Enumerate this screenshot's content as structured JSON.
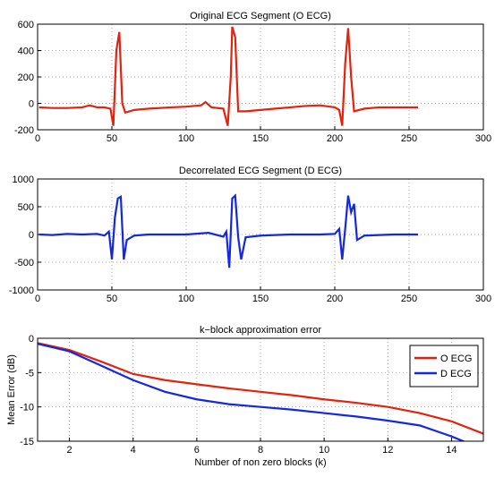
{
  "chart_data": [
    {
      "type": "line",
      "title": "Original ECG Segment (O ECG)",
      "color": "#e0240f",
      "x": [
        1,
        10,
        20,
        30,
        35,
        40,
        45,
        49,
        51,
        53,
        55,
        57,
        59,
        65,
        75,
        90,
        100,
        110,
        113,
        117,
        125,
        128,
        130,
        131,
        133,
        135,
        140,
        150,
        160,
        170,
        180,
        190,
        200,
        203,
        205,
        207,
        209,
        211,
        213,
        220,
        230,
        240,
        256
      ],
      "values": [
        -30,
        -35,
        -35,
        -30,
        -15,
        -30,
        -30,
        -40,
        -170,
        400,
        540,
        0,
        -70,
        -50,
        -40,
        -30,
        -25,
        -15,
        10,
        -30,
        -40,
        -170,
        200,
        580,
        500,
        -60,
        -60,
        -50,
        -40,
        -30,
        -20,
        -15,
        -30,
        -50,
        -170,
        300,
        570,
        200,
        -60,
        -40,
        -30,
        -30,
        -30
      ],
      "xlim": [
        0,
        300
      ],
      "xticks": [
        0,
        50,
        100,
        150,
        200,
        250,
        300
      ],
      "ylim": [
        -200,
        600
      ],
      "yticks": [
        -200,
        0,
        200,
        400,
        600
      ],
      "grid": true
    },
    {
      "type": "line",
      "title": "Decorrelated ECG Segment (D ECG)",
      "color": "#1428e0",
      "x": [
        1,
        10,
        20,
        30,
        40,
        45,
        48,
        50,
        52,
        54,
        56,
        58,
        60,
        65,
        75,
        100,
        115,
        125,
        127,
        129,
        131,
        133,
        135,
        137,
        140,
        150,
        170,
        190,
        200,
        203,
        205,
        207,
        209,
        211,
        213,
        215,
        220,
        240,
        256
      ],
      "values": [
        0,
        -10,
        10,
        0,
        10,
        -20,
        50,
        -450,
        300,
        650,
        680,
        -450,
        -100,
        -20,
        0,
        0,
        30,
        -40,
        50,
        -600,
        650,
        700,
        -50,
        -450,
        -50,
        -20,
        0,
        0,
        10,
        100,
        -450,
        100,
        700,
        400,
        550,
        -100,
        -20,
        0,
        0
      ],
      "xlim": [
        0,
        300
      ],
      "xticks": [
        0,
        50,
        100,
        150,
        200,
        250,
        300
      ],
      "ylim": [
        -1000,
        1000
      ],
      "yticks": [
        -1000,
        -500,
        0,
        500,
        1000
      ],
      "grid": true
    },
    {
      "type": "line",
      "title": "k−block approximation error",
      "xlabel": "Number of non zero blocks (k)",
      "ylabel": "Mean Error (dB)",
      "x": [
        1,
        2,
        3,
        4,
        5,
        6,
        7,
        8,
        9,
        10,
        11,
        12,
        13,
        14,
        15
      ],
      "series": [
        {
          "name": "O ECG",
          "color": "#e0240f",
          "values": [
            -0.7,
            -1.7,
            -3.4,
            -5.2,
            -6.1,
            -6.7,
            -7.3,
            -7.8,
            -8.3,
            -8.9,
            -9.4,
            -10,
            -10.9,
            -12.1,
            -13.9
          ]
        },
        {
          "name": "D ECG",
          "color": "#1428e0",
          "values": [
            -0.8,
            -1.9,
            -4,
            -6.1,
            -7.8,
            -8.9,
            -9.6,
            -10,
            -10.4,
            -10.9,
            -11.4,
            -12,
            -12.7,
            -14.3,
            -16.2
          ]
        }
      ],
      "xlim": [
        1,
        15
      ],
      "xticks": [
        2,
        4,
        6,
        8,
        10,
        12,
        14
      ],
      "ylim": [
        -15,
        0
      ],
      "yticks": [
        -15,
        -10,
        -5,
        0
      ],
      "grid": true,
      "legend": "upper right"
    }
  ]
}
